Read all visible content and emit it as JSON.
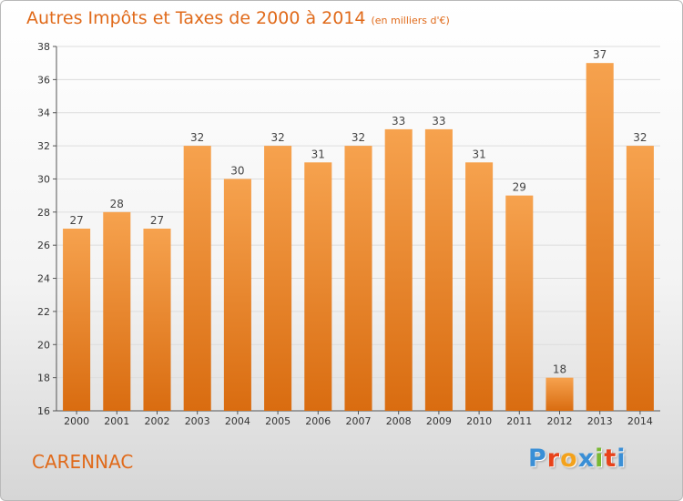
{
  "header": {
    "title": "Autres Impôts et Taxes de 2000 à 2014",
    "subtitle": "(en milliers d'€)"
  },
  "footer": {
    "city": "CARENNAC",
    "brand": "Proxiti",
    "brand_colors": [
      "#3a8fd6",
      "#e8421a",
      "#f3a21c",
      "#3a8fd6",
      "#78b832",
      "#e8421a",
      "#3a8fd6"
    ]
  },
  "colors": {
    "bar_light": "#f6a24e",
    "bar_dark": "#d96c10",
    "accent": "#e06a1a"
  },
  "chart_data": {
    "type": "bar",
    "categories": [
      "2000",
      "2001",
      "2002",
      "2003",
      "2004",
      "2005",
      "2006",
      "2007",
      "2008",
      "2009",
      "2010",
      "2011",
      "2012",
      "2013",
      "2014"
    ],
    "values": [
      27,
      28,
      27,
      32,
      30,
      32,
      31,
      32,
      33,
      33,
      31,
      29,
      18,
      37,
      32
    ],
    "ylim": [
      16,
      38
    ],
    "yticks": [
      16,
      18,
      20,
      22,
      24,
      26,
      28,
      30,
      32,
      34,
      36,
      38
    ],
    "grid": true
  }
}
